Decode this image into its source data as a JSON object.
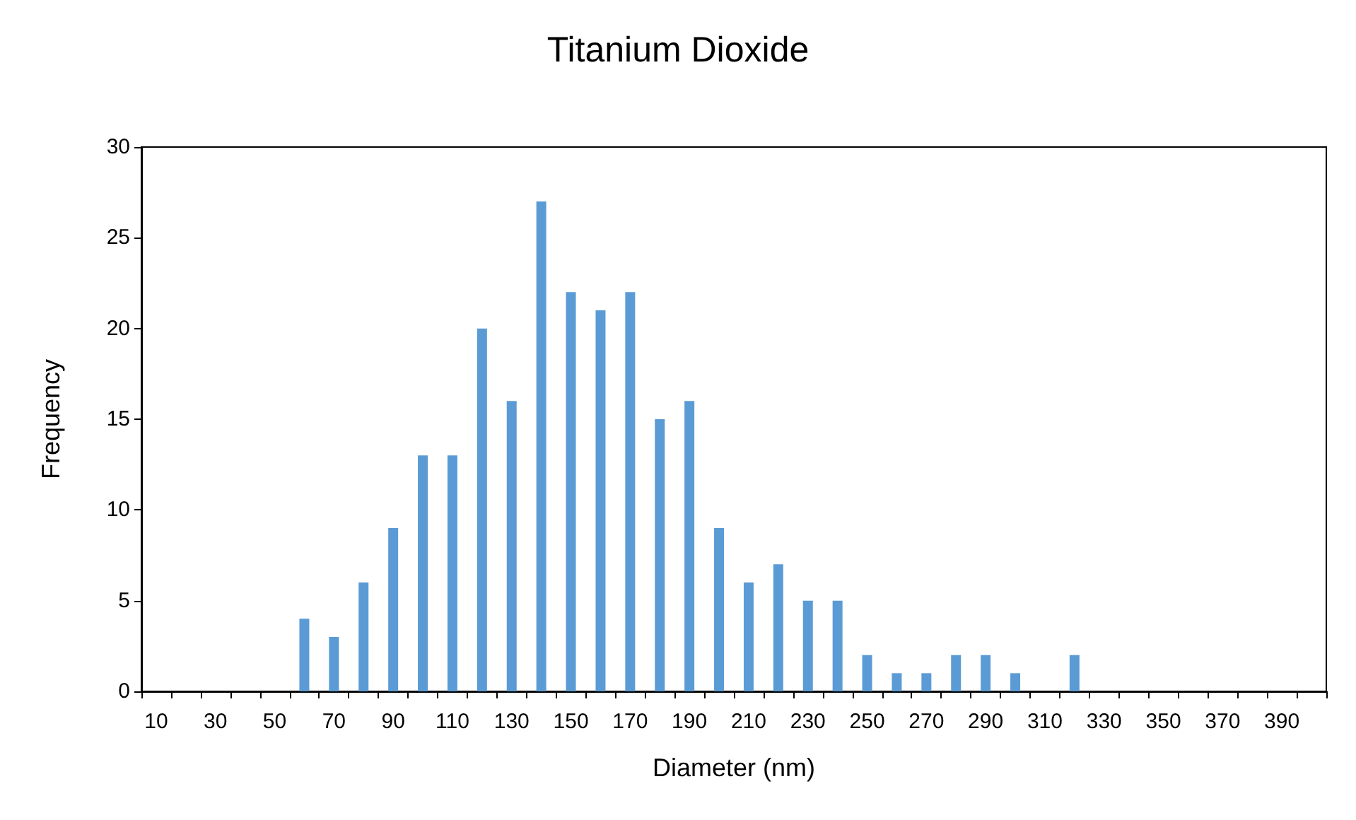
{
  "chart_data": {
    "type": "bar",
    "title": "Titanium Dioxide",
    "xlabel": "Diameter (nm)",
    "ylabel": "Frequency",
    "categories": [
      "10",
      null,
      "30",
      null,
      "50",
      null,
      "70",
      null,
      "90",
      null,
      "110",
      null,
      "130",
      null,
      "150",
      null,
      "170",
      null,
      "190",
      null,
      "210",
      null,
      "230",
      null,
      "250",
      null,
      "270",
      null,
      "290",
      null,
      "310",
      null,
      "330",
      null,
      "350",
      null,
      "370",
      null,
      "390",
      null
    ],
    "values": [
      0,
      0,
      0,
      0,
      0,
      4,
      3,
      6,
      9,
      13,
      13,
      20,
      16,
      27,
      22,
      21,
      22,
      15,
      16,
      9,
      6,
      7,
      5,
      5,
      2,
      1,
      1,
      2,
      2,
      1,
      0,
      2,
      0,
      0,
      0,
      0,
      0,
      0,
      0,
      0
    ],
    "color": "#5b9bd5",
    "ylim": [
      0,
      30
    ],
    "yticks": [
      0,
      5,
      10,
      15,
      20,
      25,
      30
    ],
    "grid": false
  }
}
